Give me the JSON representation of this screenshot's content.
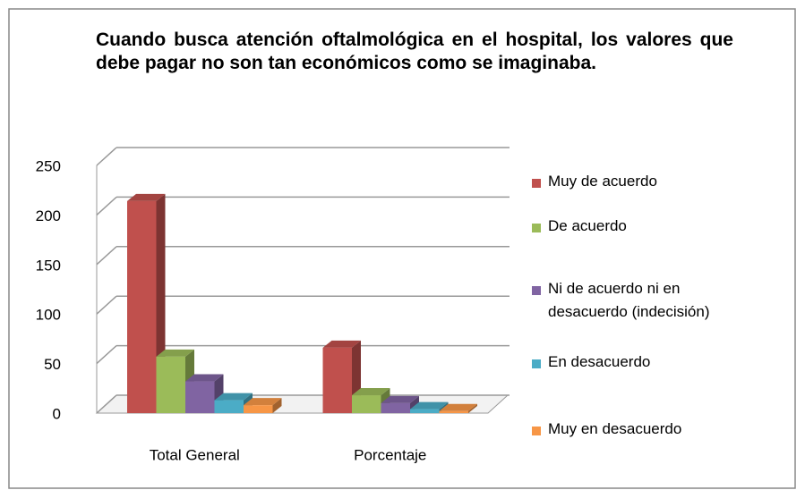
{
  "chart_data": {
    "type": "bar3d",
    "title": "Cuando busca atención oftalmológica en el hospital, los valores que debe pagar no son tan económicos como se imaginaba.",
    "categories": [
      "Total General",
      "Porcentaje"
    ],
    "series": [
      {
        "name": "Muy de acuerdo",
        "color": "#c0504d",
        "values": [
          214,
          66
        ]
      },
      {
        "name": "De acuerdo",
        "color": "#9bbb59",
        "values": [
          57,
          18
        ]
      },
      {
        "name": "Ni de acuerdo ni en desacuerdo (indecisión)",
        "color": "#8064a2",
        "values": [
          32,
          10
        ]
      },
      {
        "name": "En desacuerdo",
        "color": "#4bacc6",
        "values": [
          13,
          4
        ]
      },
      {
        "name": "Muy en desacuerdo",
        "color": "#f79646",
        "values": [
          8,
          2
        ]
      }
    ],
    "ylim": [
      0,
      250
    ],
    "yticks": [
      0,
      50,
      100,
      150,
      200,
      250
    ],
    "grid": true
  }
}
